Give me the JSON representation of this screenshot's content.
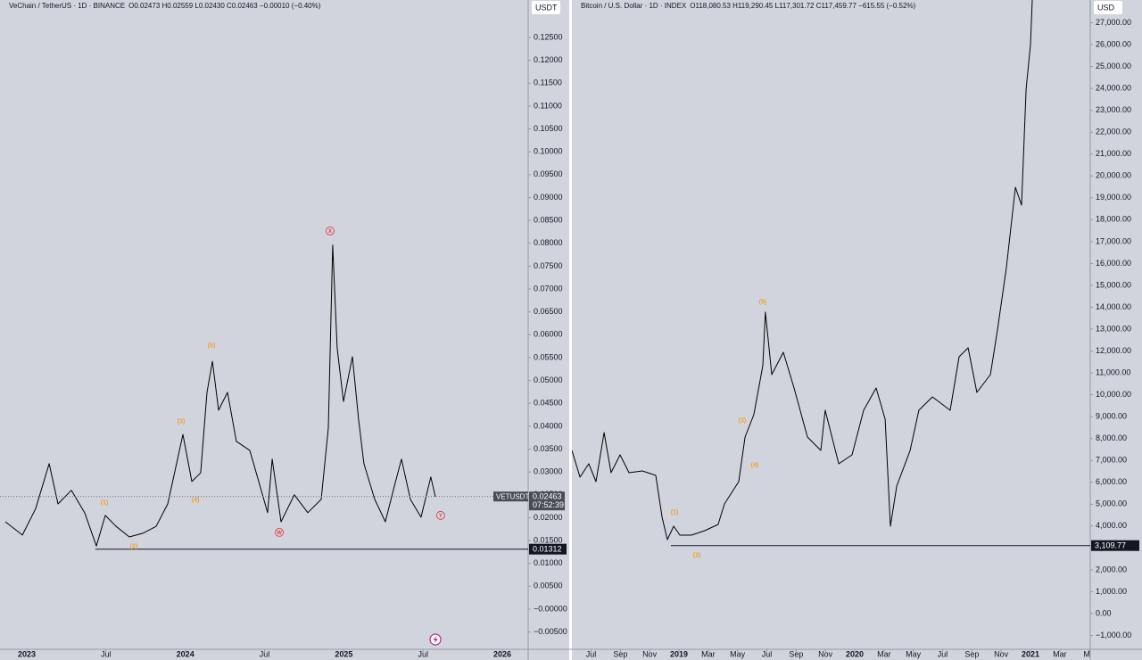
{
  "chart_data": [
    {
      "type": "line",
      "title": "VeChain / TetherUS · 1D · BINANCE",
      "subtitle": "O0.02473 H0.02559 L0.02430 C0.02463 −0.00010 (−0.40%)",
      "unit": "USDT",
      "color": "#000000",
      "x": [
        2022.865,
        2022.972,
        2023.056,
        2023.141,
        2023.197,
        2023.281,
        2023.366,
        2023.439,
        2023.495,
        2023.563,
        2023.647,
        2023.732,
        2023.816,
        2023.889,
        2023.945,
        2023.985,
        2024.041,
        2024.097,
        2024.137,
        2024.171,
        2024.21,
        2024.266,
        2024.322,
        2024.407,
        2024.463,
        2024.519,
        2024.548,
        2024.604,
        2024.688,
        2024.773,
        2024.857,
        2024.902,
        2024.93,
        2024.958,
        2024.998,
        2025.054,
        2025.093,
        2025.127,
        2025.195,
        2025.262,
        2025.319,
        2025.364,
        2025.42,
        2025.487,
        2025.549,
        2025.577
      ],
      "values": [
        0.0191,
        0.0162,
        0.022,
        0.0318,
        0.023,
        0.026,
        0.021,
        0.0138,
        0.0205,
        0.0181,
        0.0158,
        0.0166,
        0.0181,
        0.023,
        0.0318,
        0.0382,
        0.0279,
        0.0298,
        0.0474,
        0.0542,
        0.0435,
        0.0474,
        0.0367,
        0.0347,
        0.0279,
        0.0211,
        0.0328,
        0.0191,
        0.025,
        0.0211,
        0.024,
        0.0396,
        0.0796,
        0.0571,
        0.0454,
        0.0552,
        0.0415,
        0.0318,
        0.024,
        0.0191,
        0.0269,
        0.0328,
        0.024,
        0.0201,
        0.0289,
        0.0246
      ],
      "xlim": [
        2022.831,
        2026.163
      ],
      "xticks": [
        2023,
        {
          "value": 2023.5,
          "label": "Jul"
        },
        2024,
        {
          "value": 2024.5,
          "label": "Jul"
        },
        2025,
        {
          "value": 2025.5,
          "label": "Jul"
        },
        2026
      ],
      "ylim": [
        -0.00878,
        0.1332
      ],
      "yticks": [
        {
          "value": 0.125,
          "label": "0.12500"
        },
        {
          "value": 0.12,
          "label": "0.12000"
        },
        {
          "value": 0.115,
          "label": "0.11500"
        },
        {
          "value": 0.11,
          "label": "0.11000"
        },
        {
          "value": 0.105,
          "label": "0.10500"
        },
        {
          "value": 0.1,
          "label": "0.10000"
        },
        {
          "value": 0.095,
          "label": "0.09500"
        },
        {
          "value": 0.09,
          "label": "0.09000"
        },
        {
          "value": 0.085,
          "label": "0.08500"
        },
        {
          "value": 0.08,
          "label": "0.08000"
        },
        {
          "value": 0.075,
          "label": "0.07500"
        },
        {
          "value": 0.07,
          "label": "0.07000"
        },
        {
          "value": 0.065,
          "label": "0.06500"
        },
        {
          "value": 0.06,
          "label": "0.06000"
        },
        {
          "value": 0.055,
          "label": "0.05500"
        },
        {
          "value": 0.05,
          "label": "0.05000"
        },
        {
          "value": 0.045,
          "label": "0.04500"
        },
        {
          "value": 0.04,
          "label": "0.04000"
        },
        {
          "value": 0.035,
          "label": "0.03500"
        },
        {
          "value": 0.03,
          "label": "0.03000"
        },
        {
          "value": 0.025,
          "label": "0.02500"
        },
        {
          "value": 0.02,
          "label": "0.02000"
        },
        {
          "value": 0.015,
          "label": "0.01500"
        },
        {
          "value": 0.01,
          "label": "0.01000"
        },
        {
          "value": 0.005,
          "label": "0.00500"
        },
        {
          "value": 0,
          "label": "−0.00000"
        },
        {
          "value": -0.005,
          "label": "−0.00500"
        }
      ],
      "support_line": {
        "value": 0.01312,
        "from": 2023.433
      },
      "last_price": {
        "name": "VETUSDT",
        "value": 0.02463,
        "countdown": "07:52:39"
      },
      "annotations": [
        {
          "text": "(1)",
          "x": 2023.49,
          "y": 0.0234,
          "color": "#f0a030"
        },
        {
          "text": "(2)",
          "x": 2023.675,
          "y": 0.0138,
          "color": "#f0a030"
        },
        {
          "text": "(3)",
          "x": 2023.974,
          "y": 0.0411,
          "color": "#f0a030"
        },
        {
          "text": "(4)",
          "x": 2024.064,
          "y": 0.024,
          "color": "#f0a030"
        },
        {
          "text": "(5)",
          "x": 2024.165,
          "y": 0.0577,
          "color": "#f0a030"
        },
        {
          "text": "W",
          "x": 2024.593,
          "y": 0.0168,
          "color": "#e0424f",
          "circled": true
        },
        {
          "text": "X",
          "x": 2024.913,
          "y": 0.0827,
          "color": "#e0424f",
          "circled": true
        },
        {
          "text": "Y",
          "x": 2025.611,
          "y": 0.0205,
          "color": "#e0424f",
          "circled": true
        }
      ]
    },
    {
      "type": "line",
      "title": "Bitcoin / U.S. Dollar · 1D · INDEX",
      "subtitle": "O118,080.53 H119,290.45 L117,301.72 C117,459.77 −615.55 (−0.52%)",
      "unit": "USD",
      "color": "#000000",
      "x": [
        2018.391,
        2018.437,
        2018.487,
        2018.528,
        2018.574,
        2018.614,
        2018.665,
        2018.716,
        2018.792,
        2018.868,
        2018.904,
        2018.934,
        2018.97,
        2019.005,
        2019.071,
        2019.147,
        2019.223,
        2019.259,
        2019.34,
        2019.376,
        2019.426,
        2019.477,
        2019.492,
        2019.528,
        2019.594,
        2019.655,
        2019.731,
        2019.807,
        2019.832,
        2019.909,
        2019.985,
        2020.051,
        2020.122,
        2020.173,
        2020.203,
        2020.239,
        2020.315,
        2020.365,
        2020.442,
        2020.543,
        2020.594,
        2020.645,
        2020.695,
        2020.772,
        2020.812,
        2020.863,
        2020.914,
        2020.949,
        2020.975,
        2021.0,
        2021.01
      ],
      "values": [
        7458,
        6236,
        6847,
        6032,
        8274,
        6439,
        7255,
        6439,
        6521,
        6317,
        4402,
        3383,
        3994,
        3587,
        3587,
        3790,
        4076,
        5013,
        6032,
        8070,
        9089,
        11330,
        13776,
        10923,
        11942,
        10311,
        8070,
        7458,
        9292,
        6847,
        7255,
        9292,
        10311,
        8885,
        3994,
        5828,
        7458,
        9292,
        9904,
        9292,
        11738,
        12145,
        10108,
        10923,
        12961,
        15814,
        19482,
        18667,
        23965,
        26003,
        28040
      ],
      "xlim": [
        2018.391,
        2021.34
      ],
      "xticks": [
        {
          "value": 2018.5,
          "label": "Jul"
        },
        {
          "value": 2018.667,
          "label": "Sep"
        },
        {
          "value": 2018.833,
          "label": "Nov"
        },
        2019,
        {
          "value": 2019.167,
          "label": "Mar"
        },
        {
          "value": 2019.333,
          "label": "May"
        },
        {
          "value": 2019.5,
          "label": "Jul"
        },
        {
          "value": 2019.667,
          "label": "Sep"
        },
        {
          "value": 2019.833,
          "label": "Nov"
        },
        2020,
        {
          "value": 2020.167,
          "label": "Mar"
        },
        {
          "value": 2020.333,
          "label": "May"
        },
        {
          "value": 2020.5,
          "label": "Jul"
        },
        {
          "value": 2020.667,
          "label": "Sep"
        },
        {
          "value": 2020.833,
          "label": "Nov"
        },
        2021,
        {
          "value": 2021.167,
          "label": "Mar"
        },
        {
          "value": 2021.333,
          "label": "Ma"
        }
      ],
      "ylim": [
        -1630,
        28040
      ],
      "yticks": [
        {
          "value": 27000,
          "label": "27,000.00"
        },
        {
          "value": 26000,
          "label": "26,000.00"
        },
        {
          "value": 25000,
          "label": "25,000.00"
        },
        {
          "value": 24000,
          "label": "24,000.00"
        },
        {
          "value": 23000,
          "label": "23,000.00"
        },
        {
          "value": 22000,
          "label": "22,000.00"
        },
        {
          "value": 21000,
          "label": "21,000.00"
        },
        {
          "value": 20000,
          "label": "20,000.00"
        },
        {
          "value": 19000,
          "label": "19,000.00"
        },
        {
          "value": 18000,
          "label": "18,000.00"
        },
        {
          "value": 17000,
          "label": "17,000.00"
        },
        {
          "value": 16000,
          "label": "16,000.00"
        },
        {
          "value": 15000,
          "label": "15,000.00"
        },
        {
          "value": 14000,
          "label": "14,000.00"
        },
        {
          "value": 13000,
          "label": "13,000.00"
        },
        {
          "value": 12000,
          "label": "12,000.00"
        },
        {
          "value": 11000,
          "label": "11,000.00"
        },
        {
          "value": 10000,
          "label": "10,000.00"
        },
        {
          "value": 9000,
          "label": "9,000.00"
        },
        {
          "value": 8000,
          "label": "8,000.00"
        },
        {
          "value": 7000,
          "label": "7,000.00"
        },
        {
          "value": 6000,
          "label": "6,000.00"
        },
        {
          "value": 5000,
          "label": "5,000.00"
        },
        {
          "value": 4000,
          "label": "4,000.00"
        },
        {
          "value": 3000,
          "label": "3,000.00"
        },
        {
          "value": 2000,
          "label": "2,000.00"
        },
        {
          "value": 1000,
          "label": "1,000.00"
        },
        {
          "value": 0,
          "label": "0.00"
        },
        {
          "value": -1000,
          "label": "−1,000.00"
        }
      ],
      "support_line": {
        "value": 3109.77,
        "value_label": "3,109.77",
        "from": 2018.954
      },
      "annotations": [
        {
          "text": "(1)",
          "x": 2018.975,
          "y": 4646,
          "color": "#f0a030"
        },
        {
          "text": "(2)",
          "x": 2019.102,
          "y": 2690,
          "color": "#f0a030"
        },
        {
          "text": "(3)",
          "x": 2019.36,
          "y": 8844,
          "color": "#f0a030"
        },
        {
          "text": "(4)",
          "x": 2019.431,
          "y": 6806,
          "color": "#f0a030"
        },
        {
          "text": "(5)",
          "x": 2019.477,
          "y": 14265,
          "color": "#f0a030"
        }
      ]
    }
  ]
}
